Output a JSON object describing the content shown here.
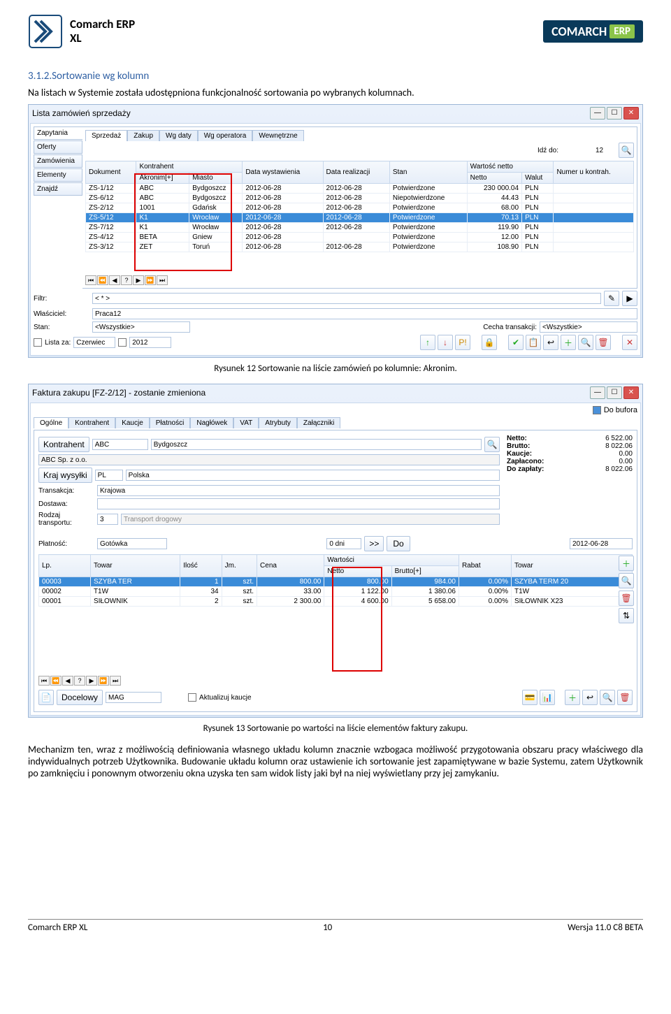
{
  "header": {
    "brand_line1": "Comarch ERP",
    "brand_line2": "XL",
    "right_brand": "COMARCH",
    "right_box": "ERP"
  },
  "section": {
    "heading": "3.1.2.Sortowanie wg kolumn",
    "intro": "Na listach w Systemie została udostępniona funkcjonalność sortowania po wybranych kolumnach.",
    "caption1": "Rysunek 12 Sortowanie na liście zamówień po kolumnie: Akronim.",
    "caption2": "Rysunek 13 Sortowanie po wartości na liście elementów faktury zakupu.",
    "para2": "Mechanizm ten, wraz z możliwością definiowania własnego układu kolumn znacznie wzbogaca możliwość przygotowania obszaru pracy właściwego dla indywidualnych potrzeb Użytkownika. Budowanie układu kolumn oraz ustawienie ich sortowanie jest zapamiętywane w bazie Systemu, zatem Użytkownik po zamknięciu i ponownym otworzeniu okna uzyska ten sam widok listy jaki był na niej wyświetlany przy jej zamykaniu."
  },
  "win1": {
    "title": "Lista zamówień sprzedaży",
    "side_tabs": [
      "Zapytania",
      "Oferty",
      "Zamówienia",
      "Elementy",
      "Znajdź"
    ],
    "top_tabs": [
      "Sprzedaż",
      "Zakup",
      "Wg daty",
      "Wg operatora",
      "Wewnętrzne"
    ],
    "idz_label": "Idź do:",
    "idz_val": "12",
    "cols": [
      "Dokument",
      "Akronim[+]",
      "Miasto",
      "Data wystawienia",
      "Data realizacji",
      "Stan",
      "Netto",
      "Walut"
    ],
    "grp1": "Kontrahent",
    "grp2": "Wartość netto",
    "extra_col": "Numer u kontrah.",
    "rows": [
      [
        "ZS-1/12",
        "ABC",
        "Bydgoszcz",
        "2012-06-28",
        "2012-06-28",
        "Potwierdzone",
        "230 000.04",
        "PLN"
      ],
      [
        "ZS-6/12",
        "ABC",
        "Bydgoszcz",
        "2012-06-28",
        "2012-06-28",
        "Niepotwierdzone",
        "44.43",
        "PLN"
      ],
      [
        "ZS-2/12",
        "1001",
        "Gdańsk",
        "2012-06-28",
        "2012-06-28",
        "Potwierdzone",
        "68.00",
        "PLN"
      ],
      [
        "ZS-5/12",
        "K1",
        "Wrocław",
        "2012-06-28",
        "2012-06-28",
        "Potwierdzone",
        "70.13",
        "PLN"
      ],
      [
        "ZS-7/12",
        "K1",
        "Wrocław",
        "2012-06-28",
        "2012-06-28",
        "Potwierdzone",
        "119.90",
        "PLN"
      ],
      [
        "ZS-4/12",
        "BETA",
        "Gniew",
        "2012-06-28",
        "",
        "Potwierdzone",
        "12.00",
        "PLN"
      ],
      [
        "ZS-3/12",
        "ZET",
        "Toruń",
        "2012-06-28",
        "2012-06-28",
        "Potwierdzone",
        "108.90",
        "PLN"
      ]
    ],
    "selected_row": 3,
    "filters": {
      "filtr_lbl": "Filtr:",
      "filtr_val": "< * >",
      "wlasc_lbl": "Właściciel:",
      "wlasc_val": "Praca12",
      "stan_lbl": "Stan:",
      "stan_val": "<Wszystkie>",
      "cecha_lbl": "Cecha transakcji:",
      "cecha_val": "<Wszystkie>",
      "lista_za": "Lista za:",
      "lista_za_val": "Czerwiec",
      "rok": "2012"
    }
  },
  "win2": {
    "title": "Faktura zakupu [FZ-2/12] - zostanie zmieniona",
    "tabs": [
      "Ogólne",
      "Kontrahent",
      "Kaucje",
      "Płatności",
      "Nagłówek",
      "VAT",
      "Atrybuty",
      "Załączniki"
    ],
    "do_bufora": "Do bufora",
    "kontrahent_lbl": "Kontrahent",
    "kontrahent_val": "ABC",
    "kontrahent_city": "Bydgoszcz",
    "sp": "ABC Sp. z o.o.",
    "kraj_lbl": "Kraj wysyłki",
    "kraj_code": "PL",
    "kraj_name": "Polska",
    "transakcja_lbl": "Transakcja:",
    "transakcja_val": "Krajowa",
    "dostawa_lbl": "Dostawa:",
    "rodzaj_lbl": "Rodzaj transportu:",
    "rodzaj_val": "3",
    "rodzaj_txt": "Transport drogowy",
    "platnosc_lbl": "Płatność:",
    "platnosc_val": "Gotówka",
    "dni": "0 dni",
    "do_btn": "Do",
    "data": "2012-06-28",
    "summary": {
      "netto_lbl": "Netto:",
      "netto": "6 522.00",
      "brutto_lbl": "Brutto:",
      "brutto": "8 022.06",
      "kaucje_lbl": "Kaucje:",
      "kaucje": "0.00",
      "zapl_lbl": "Zapłacono:",
      "zapl": "0.00",
      "dozap_lbl": "Do zapłaty:",
      "dozap": "8 022.06"
    },
    "cols": [
      "Lp.",
      "Towar",
      "Ilość",
      "Jm.",
      "Cena",
      "Netto",
      "Brutto[+]",
      "Rabat",
      "Towar"
    ],
    "grp": "Wartości",
    "rows": [
      [
        "00003",
        "SZYBA TER",
        "1",
        "szt.",
        "800.00",
        "800.00",
        "984.00",
        "0.00%",
        "SZYBA TERM 20"
      ],
      [
        "00002",
        "T1W",
        "34",
        "szt.",
        "33.00",
        "1 122.00",
        "1 380.06",
        "0.00%",
        "T1W"
      ],
      [
        "00001",
        "SIŁOWNIK",
        "2",
        "szt.",
        "2 300.00",
        "4 600.00",
        "5 658.00",
        "0.00%",
        "SIŁOWNIK X23"
      ]
    ],
    "selected_row": 0,
    "docelowy_lbl": "Docelowy",
    "docelowy_val": "MAG",
    "aktualizuj": "Aktualizuj kaucje"
  },
  "footer": {
    "left": "Comarch ERP XL",
    "page": "10",
    "right": "Wersja 11.0 C8 BETA"
  }
}
